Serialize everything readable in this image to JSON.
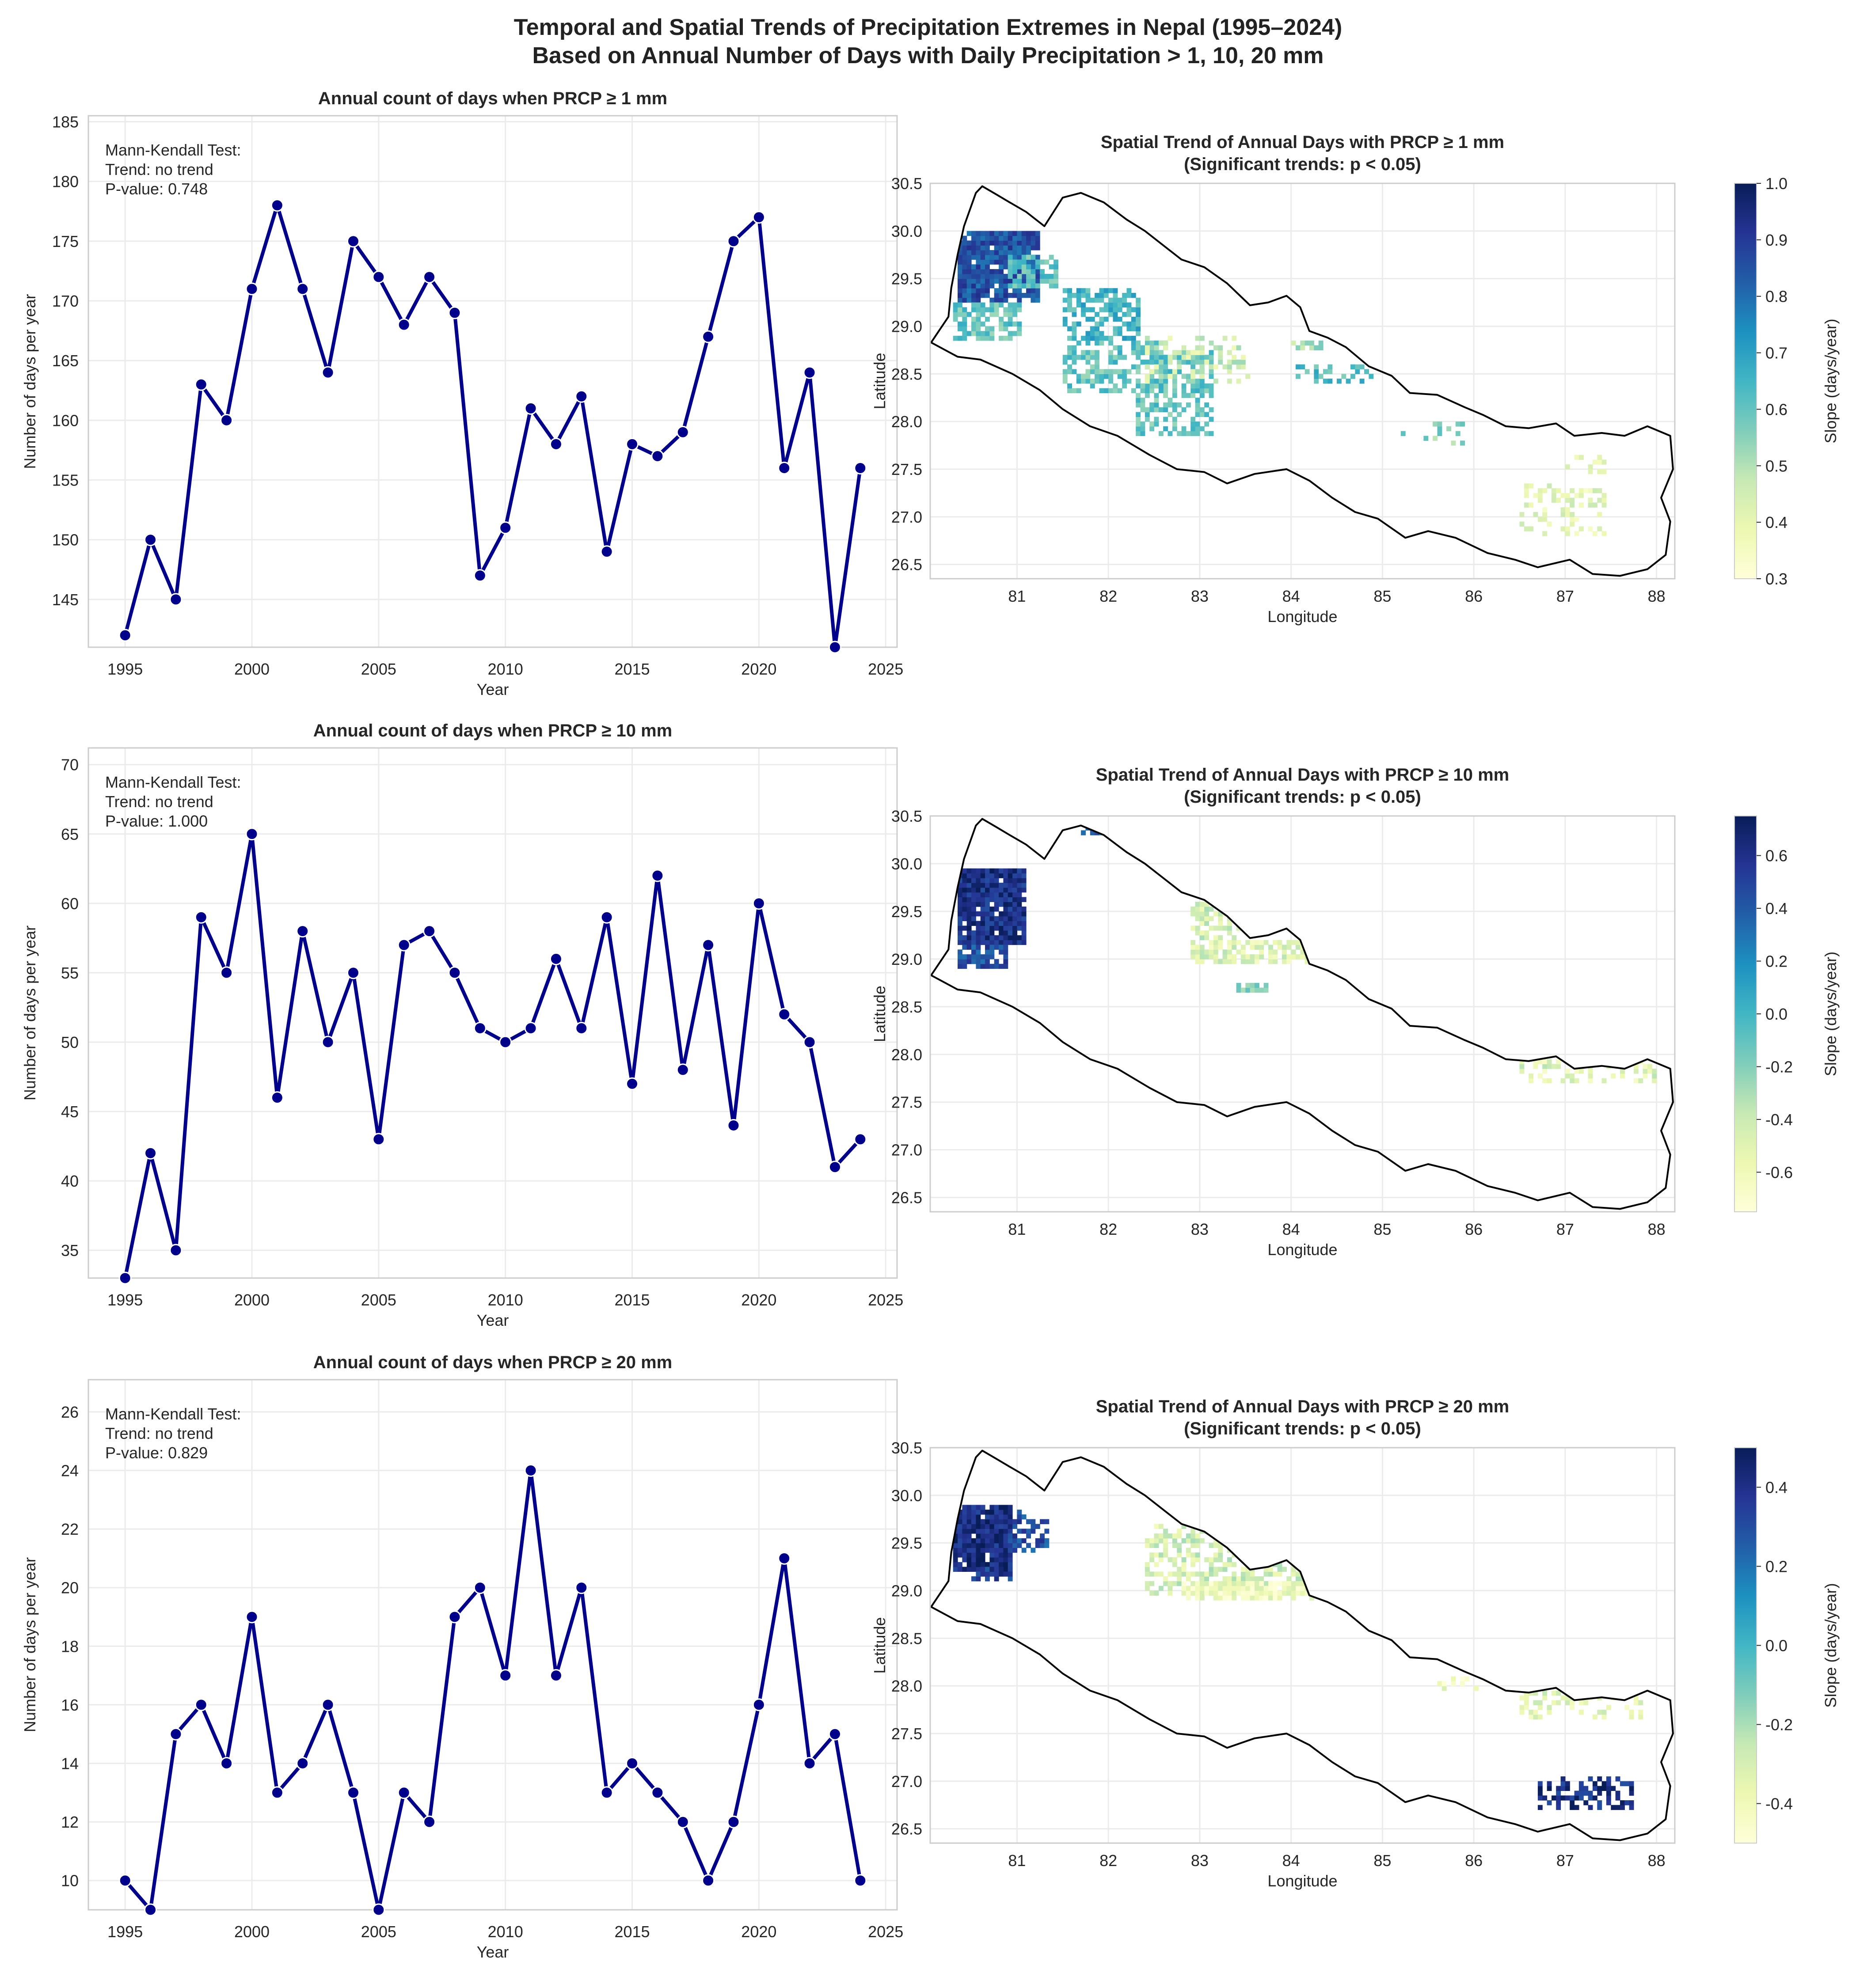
{
  "figure": {
    "title_line1": "Temporal and Spatial Trends of Precipitation Extremes in Nepal (1995–2024)",
    "title_line2": "Based on Annual Number of Days with Daily Precipitation > 1, 10, 20 mm"
  },
  "colors": {
    "line": "#00008b",
    "colormap": [
      "#ffffd9",
      "#edf8b1",
      "#c7e9b4",
      "#7fcdbb",
      "#41b6c4",
      "#1d91c0",
      "#225ea8",
      "#253494",
      "#081d58"
    ],
    "boundary": "#000000",
    "grid": "#ebebeb"
  },
  "chart_data": [
    {
      "type": "line",
      "title": "Annual count of days when PRCP ≥  1 mm",
      "xlabel": "Year",
      "ylabel": "Number of days per year",
      "xlim": [
        1993.55,
        2025.45
      ],
      "ylim": [
        141,
        185.5
      ],
      "xticks": [
        1995,
        2000,
        2005,
        2010,
        2015,
        2020,
        2025
      ],
      "yticks": [
        145,
        150,
        155,
        160,
        165,
        170,
        175,
        180,
        185
      ],
      "annotation": [
        "Mann-Kendall Test:",
        "Trend: no trend",
        "P-value: 0.748"
      ],
      "x": [
        1995,
        1996,
        1997,
        1998,
        1999,
        2000,
        2001,
        2002,
        2003,
        2004,
        2005,
        2006,
        2007,
        2008,
        2009,
        2010,
        2011,
        2012,
        2013,
        2014,
        2015,
        2016,
        2017,
        2018,
        2019,
        2020,
        2021,
        2022,
        2023,
        2024
      ],
      "values": [
        142,
        150,
        145,
        163,
        160,
        171,
        178,
        171,
        164,
        175,
        172,
        168,
        172,
        169,
        147,
        151,
        161,
        158,
        162,
        149,
        158,
        157,
        159,
        167,
        175,
        177,
        156,
        164,
        141,
        156
      ],
      "grid": true
    },
    {
      "type": "line",
      "title": "Annual count of days when PRCP ≥  10 mm",
      "xlabel": "Year",
      "ylabel": "Number of days per year",
      "xlim": [
        1993.55,
        2025.45
      ],
      "ylim": [
        33,
        71.2
      ],
      "xticks": [
        1995,
        2000,
        2005,
        2010,
        2015,
        2020,
        2025
      ],
      "yticks": [
        35,
        40,
        45,
        50,
        55,
        60,
        65,
        70
      ],
      "annotation": [
        "Mann-Kendall Test:",
        "Trend: no trend",
        "P-value: 1.000"
      ],
      "x": [
        1995,
        1996,
        1997,
        1998,
        1999,
        2000,
        2001,
        2002,
        2003,
        2004,
        2005,
        2006,
        2007,
        2008,
        2009,
        2010,
        2011,
        2012,
        2013,
        2014,
        2015,
        2016,
        2017,
        2018,
        2019,
        2020,
        2021,
        2022,
        2023,
        2024
      ],
      "values": [
        33,
        42,
        35,
        59,
        55,
        65,
        46,
        58,
        50,
        55,
        43,
        57,
        58,
        55,
        51,
        50,
        51,
        56,
        51,
        59,
        47,
        62,
        48,
        57,
        44,
        60,
        52,
        50,
        41,
        43
      ],
      "grid": true
    },
    {
      "type": "line",
      "title": "Annual count of days when PRCP ≥  20 mm",
      "xlabel": "Year",
      "ylabel": "Number of days per year",
      "xlim": [
        1993.55,
        2025.45
      ],
      "ylim": [
        9,
        27.1
      ],
      "xticks": [
        1995,
        2000,
        2005,
        2010,
        2015,
        2020,
        2025
      ],
      "yticks": [
        10,
        12,
        14,
        16,
        18,
        20,
        22,
        24,
        26
      ],
      "annotation": [
        "Mann-Kendall Test:",
        "Trend: no trend",
        "P-value: 0.829"
      ],
      "x": [
        1995,
        1996,
        1997,
        1998,
        1999,
        2000,
        2001,
        2002,
        2003,
        2004,
        2005,
        2006,
        2007,
        2008,
        2009,
        2010,
        2011,
        2012,
        2013,
        2014,
        2015,
        2016,
        2017,
        2018,
        2019,
        2020,
        2021,
        2022,
        2023,
        2024
      ],
      "values": [
        10,
        9,
        15,
        16,
        14,
        19,
        13,
        14,
        16,
        13,
        9,
        13,
        12,
        19,
        20,
        17,
        24,
        17,
        20,
        13,
        14,
        13,
        12,
        10,
        12,
        16,
        21,
        14,
        15,
        10
      ],
      "grid": true
    },
    {
      "type": "heatmap",
      "title": "Spatial Trend of Annual Days with PRCP ≥ 1 mm",
      "subtitle": "(Significant trends: p < 0.05)",
      "xlabel": "Longitude",
      "ylabel": "Latitude",
      "xlim": [
        80.05,
        88.2
      ],
      "ylim": [
        26.35,
        30.5
      ],
      "xticks": [
        81,
        82,
        83,
        84,
        85,
        86,
        87,
        88
      ],
      "yticks": [
        26.5,
        27.0,
        27.5,
        28.0,
        28.5,
        29.0,
        29.5,
        30.0,
        30.5
      ],
      "colorbar_label": "Slope (days/year)",
      "clim": [
        0.3,
        1.0
      ],
      "colorbar_ticks": [
        0.3,
        0.4,
        0.5,
        0.6,
        0.7,
        0.8,
        0.9,
        1.0
      ],
      "regions": [
        {
          "lon": [
            80.35,
            81.2
          ],
          "lat": [
            29.25,
            30.0
          ],
          "value": 0.85,
          "density": 0.9
        },
        {
          "lon": [
            80.9,
            81.4
          ],
          "lat": [
            29.4,
            29.75
          ],
          "value": 0.6,
          "density": 0.7
        },
        {
          "lon": [
            80.3,
            81.0
          ],
          "lat": [
            28.85,
            29.25
          ],
          "value": 0.6,
          "density": 0.6
        },
        {
          "lon": [
            81.5,
            82.3
          ],
          "lat": [
            28.85,
            29.4
          ],
          "value": 0.65,
          "density": 0.6
        },
        {
          "lon": [
            81.5,
            82.6
          ],
          "lat": [
            28.3,
            28.85
          ],
          "value": 0.6,
          "density": 0.5
        },
        {
          "lon": [
            82.3,
            83.1
          ],
          "lat": [
            27.85,
            28.75
          ],
          "value": 0.6,
          "density": 0.55
        },
        {
          "lon": [
            82.4,
            83.5
          ],
          "lat": [
            28.4,
            28.9
          ],
          "value": 0.45,
          "density": 0.3
        },
        {
          "lon": [
            84.0,
            84.9
          ],
          "lat": [
            28.4,
            28.6
          ],
          "value": 0.62,
          "density": 0.35
        },
        {
          "lon": [
            84.0,
            84.3
          ],
          "lat": [
            28.75,
            28.85
          ],
          "value": 0.5,
          "density": 0.6
        },
        {
          "lon": [
            85.2,
            85.9
          ],
          "lat": [
            27.75,
            28.0
          ],
          "value": 0.55,
          "density": 0.2
        },
        {
          "lon": [
            86.5,
            87.4
          ],
          "lat": [
            26.8,
            27.35
          ],
          "value": 0.4,
          "density": 0.35
        },
        {
          "lon": [
            87.0,
            87.4
          ],
          "lat": [
            27.45,
            27.65
          ],
          "value": 0.42,
          "density": 0.4
        }
      ]
    },
    {
      "type": "heatmap",
      "title": "Spatial Trend of Annual Days with PRCP ≥ 10 mm",
      "subtitle": "(Significant trends: p < 0.05)",
      "xlabel": "Longitude",
      "ylabel": "Latitude",
      "xlim": [
        80.05,
        88.2
      ],
      "ylim": [
        26.35,
        30.5
      ],
      "xticks": [
        81,
        82,
        83,
        84,
        85,
        86,
        87,
        88
      ],
      "yticks": [
        26.5,
        27.0,
        27.5,
        28.0,
        28.5,
        29.0,
        29.5,
        30.0,
        30.5
      ],
      "colorbar_label": "Slope (days/year)",
      "clim": [
        -0.75,
        0.75
      ],
      "colorbar_ticks": [
        -0.6,
        -0.4,
        -0.2,
        0.0,
        0.2,
        0.4,
        0.6
      ],
      "regions": [
        {
          "lon": [
            80.35,
            81.05
          ],
          "lat": [
            29.15,
            29.95
          ],
          "value": 0.6,
          "density": 0.95
        },
        {
          "lon": [
            80.35,
            80.85
          ],
          "lat": [
            28.9,
            29.15
          ],
          "value": 0.45,
          "density": 0.8
        },
        {
          "lon": [
            81.7,
            82.0
          ],
          "lat": [
            30.3,
            30.4
          ],
          "value": 0.3,
          "density": 0.7
        },
        {
          "lon": [
            82.9,
            84.2
          ],
          "lat": [
            28.95,
            29.2
          ],
          "value": -0.5,
          "density": 0.7
        },
        {
          "lon": [
            82.9,
            83.4
          ],
          "lat": [
            29.2,
            29.65
          ],
          "value": -0.45,
          "density": 0.45
        },
        {
          "lon": [
            83.4,
            83.7
          ],
          "lat": [
            28.65,
            28.75
          ],
          "value": -0.2,
          "density": 0.7
        },
        {
          "lon": [
            86.5,
            88.0
          ],
          "lat": [
            27.7,
            27.95
          ],
          "value": -0.5,
          "density": 0.35
        }
      ]
    },
    {
      "type": "heatmap",
      "title": "Spatial Trend of Annual Days with PRCP ≥ 20 mm",
      "subtitle": "(Significant trends: p < 0.05)",
      "xlabel": "Longitude",
      "ylabel": "Latitude",
      "xlim": [
        80.05,
        88.2
      ],
      "ylim": [
        26.35,
        30.5
      ],
      "xticks": [
        81,
        82,
        83,
        84,
        85,
        86,
        87,
        88
      ],
      "yticks": [
        26.5,
        27.0,
        27.5,
        28.0,
        28.5,
        29.0,
        29.5,
        30.0,
        30.5
      ],
      "colorbar_label": "Slope (days/year)",
      "clim": [
        -0.5,
        0.5
      ],
      "colorbar_ticks": [
        -0.4,
        -0.2,
        0.0,
        0.2,
        0.4
      ],
      "regions": [
        {
          "lon": [
            80.3,
            80.9
          ],
          "lat": [
            29.2,
            29.9
          ],
          "value": 0.42,
          "density": 0.95
        },
        {
          "lon": [
            80.9,
            81.3
          ],
          "lat": [
            29.4,
            29.85
          ],
          "value": 0.3,
          "density": 0.5
        },
        {
          "lon": [
            80.5,
            80.9
          ],
          "lat": [
            29.1,
            29.25
          ],
          "value": 0.35,
          "density": 0.7
        },
        {
          "lon": [
            82.4,
            84.2
          ],
          "lat": [
            28.95,
            29.7
          ],
          "value": -0.3,
          "density": 0.5
        },
        {
          "lon": [
            82.8,
            84.2
          ],
          "lat": [
            28.9,
            29.1
          ],
          "value": -0.4,
          "density": 0.8
        },
        {
          "lon": [
            85.6,
            86.0
          ],
          "lat": [
            27.95,
            28.1
          ],
          "value": -0.4,
          "density": 0.5
        },
        {
          "lon": [
            86.5,
            87.8
          ],
          "lat": [
            27.65,
            27.95
          ],
          "value": -0.35,
          "density": 0.35
        },
        {
          "lon": [
            86.7,
            87.7
          ],
          "lat": [
            26.7,
            27.05
          ],
          "value": 0.4,
          "density": 0.4
        }
      ]
    }
  ]
}
